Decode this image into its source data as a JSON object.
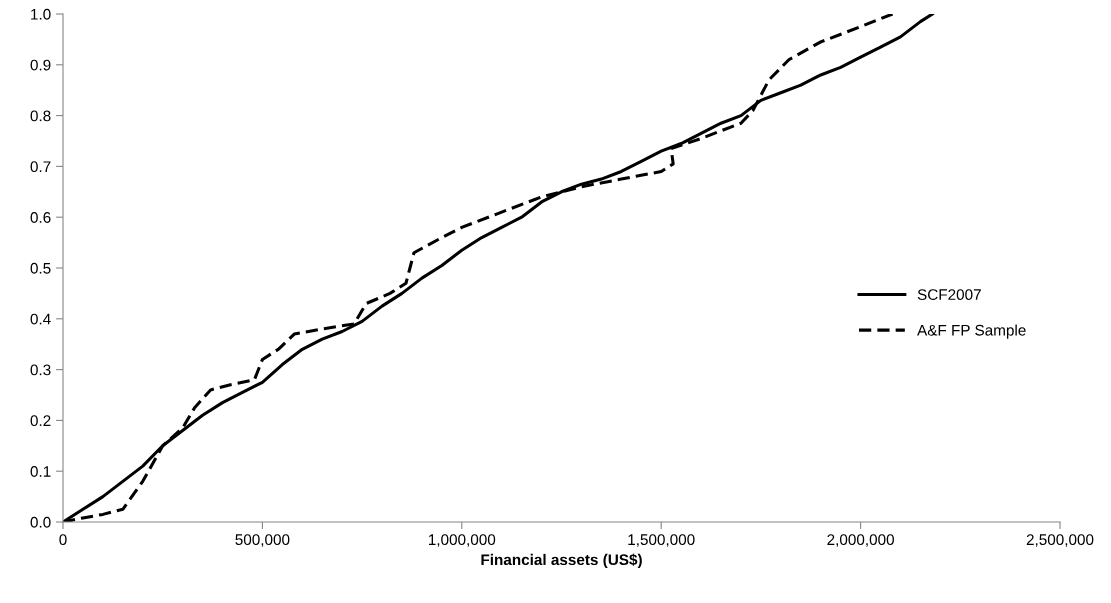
{
  "chart_data": {
    "type": "line",
    "xlabel": "Financial assets (US$)",
    "series": [
      {
        "name": "SCF2007",
        "color": "#000000",
        "line_style": "solid",
        "x": [
          0,
          50000,
          100000,
          150000,
          200000,
          250000,
          300000,
          350000,
          400000,
          450000,
          500000,
          550000,
          600000,
          650000,
          700000,
          750000,
          800000,
          850000,
          900000,
          950000,
          1000000,
          1050000,
          1100000,
          1150000,
          1200000,
          1250000,
          1300000,
          1350000,
          1400000,
          1450000,
          1500000,
          1550000,
          1600000,
          1650000,
          1700000,
          1750000,
          1800000,
          1850000,
          1900000,
          1950000,
          2000000,
          2050000,
          2100000,
          2150000,
          2180000
        ],
        "values": [
          0,
          0.025,
          0.05,
          0.08,
          0.11,
          0.15,
          0.18,
          0.21,
          0.235,
          0.255,
          0.275,
          0.31,
          0.34,
          0.36,
          0.375,
          0.395,
          0.425,
          0.45,
          0.48,
          0.505,
          0.535,
          0.56,
          0.58,
          0.6,
          0.63,
          0.65,
          0.665,
          0.675,
          0.69,
          0.71,
          0.73,
          0.745,
          0.765,
          0.785,
          0.8,
          0.83,
          0.845,
          0.86,
          0.88,
          0.895,
          0.915,
          0.935,
          0.955,
          0.985,
          1.0
        ]
      },
      {
        "name": "A&F FP Sample",
        "color": "#000000",
        "line_style": "dashed",
        "x": [
          0,
          50000,
          100000,
          150000,
          200000,
          250000,
          300000,
          330000,
          370000,
          420000,
          480000,
          500000,
          540000,
          580000,
          650000,
          730000,
          760000,
          820000,
          860000,
          870000,
          880000,
          950000,
          1000000,
          1100000,
          1200000,
          1300000,
          1400000,
          1500000,
          1530000,
          1525000,
          1600000,
          1650000,
          1700000,
          1730000,
          1770000,
          1820000,
          1900000,
          2000000,
          2080000
        ],
        "values": [
          0,
          0.008,
          0.015,
          0.025,
          0.08,
          0.15,
          0.185,
          0.225,
          0.26,
          0.27,
          0.28,
          0.32,
          0.34,
          0.37,
          0.38,
          0.39,
          0.43,
          0.45,
          0.47,
          0.5,
          0.53,
          0.56,
          0.58,
          0.61,
          0.64,
          0.66,
          0.675,
          0.69,
          0.705,
          0.735,
          0.755,
          0.77,
          0.785,
          0.81,
          0.87,
          0.91,
          0.945,
          0.975,
          1.0
        ]
      }
    ],
    "xlim": [
      0,
      2500000
    ],
    "ylim": [
      0,
      1.0
    ],
    "xticks": [
      0,
      {
        "value": 500000,
        "label": "500,000"
      },
      {
        "value": 1000000,
        "label": "1,000,000"
      },
      {
        "value": 1500000,
        "label": "1,500,000"
      },
      {
        "value": 2000000,
        "label": "2,000,000"
      },
      {
        "value": 2500000,
        "label": "2,500,000"
      }
    ],
    "yticks": [
      {
        "value": 0,
        "label": "0.0"
      },
      0.1,
      0.2,
      0.3,
      0.4,
      0.5,
      0.6,
      0.7,
      0.8,
      0.9,
      {
        "value": 1,
        "label": "1.0"
      }
    ],
    "grid": false,
    "legend": "center right",
    "marker": "none"
  }
}
